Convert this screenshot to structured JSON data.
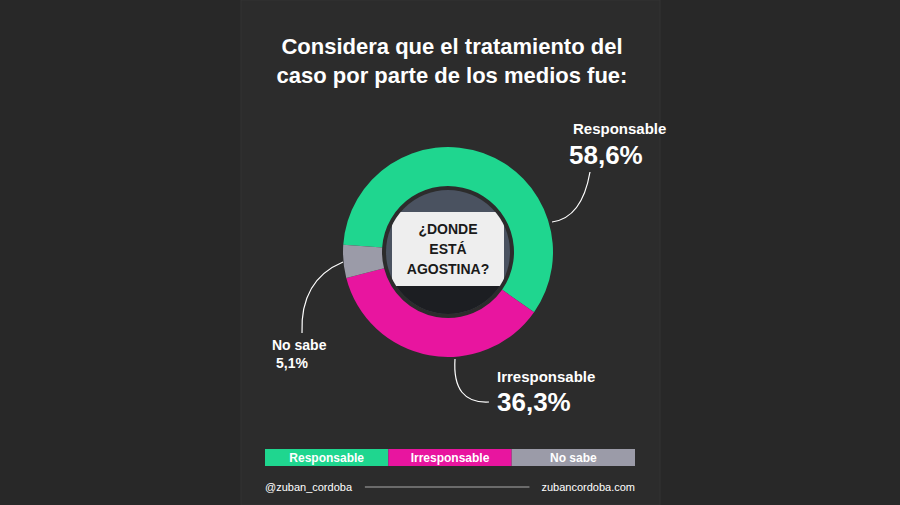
{
  "chart_data": {
    "type": "donut",
    "title": "Considera que el tratamiento del caso por parte de los medios fue:",
    "categories": [
      "Responsable",
      "Irresponsable",
      "No sabe"
    ],
    "values": [
      58.6,
      36.3,
      5.1
    ],
    "value_labels": [
      "58,6%",
      "36,3%",
      "5,1%"
    ],
    "colors": [
      "#1fd68f",
      "#e8159f",
      "#9b9ba8"
    ],
    "data_labels": true,
    "legend": "bottom",
    "center_image_text": "¿DONDE ESTÁ AGOSTINA?",
    "footer": [
      "@zuban_cordoba",
      "zubancordoba.com"
    ]
  }
}
